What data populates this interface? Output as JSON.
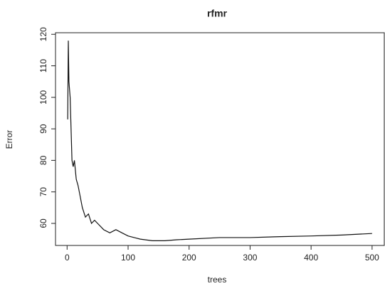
{
  "chart_data": {
    "type": "line",
    "title": "rfmr",
    "x_label": "trees",
    "y_label": "Error",
    "x": [
      1,
      2,
      3,
      5,
      8,
      10,
      12,
      15,
      18,
      20,
      25,
      30,
      35,
      40,
      45,
      50,
      60,
      70,
      80,
      90,
      100,
      110,
      120,
      140,
      160,
      180,
      200,
      250,
      300,
      350,
      400,
      450,
      500
    ],
    "series": [
      {
        "name": "Error",
        "color": "#111111",
        "values": [
          93,
          118,
          105,
          100,
          80,
          78,
          80,
          74,
          72,
          70,
          65,
          62,
          63,
          60,
          61,
          60,
          58,
          57,
          58,
          57,
          56,
          55.5,
          55,
          54.5,
          54.5,
          54.8,
          55,
          55.5,
          55.5,
          55.8,
          56,
          56.3,
          56.8
        ]
      }
    ],
    "xlim": [
      -19,
      520
    ],
    "ylim": [
      53,
      120.5
    ],
    "xticks": [
      0,
      100,
      200,
      300,
      400,
      500
    ],
    "yticks": [
      60,
      70,
      80,
      90,
      100,
      110,
      120
    ]
  }
}
